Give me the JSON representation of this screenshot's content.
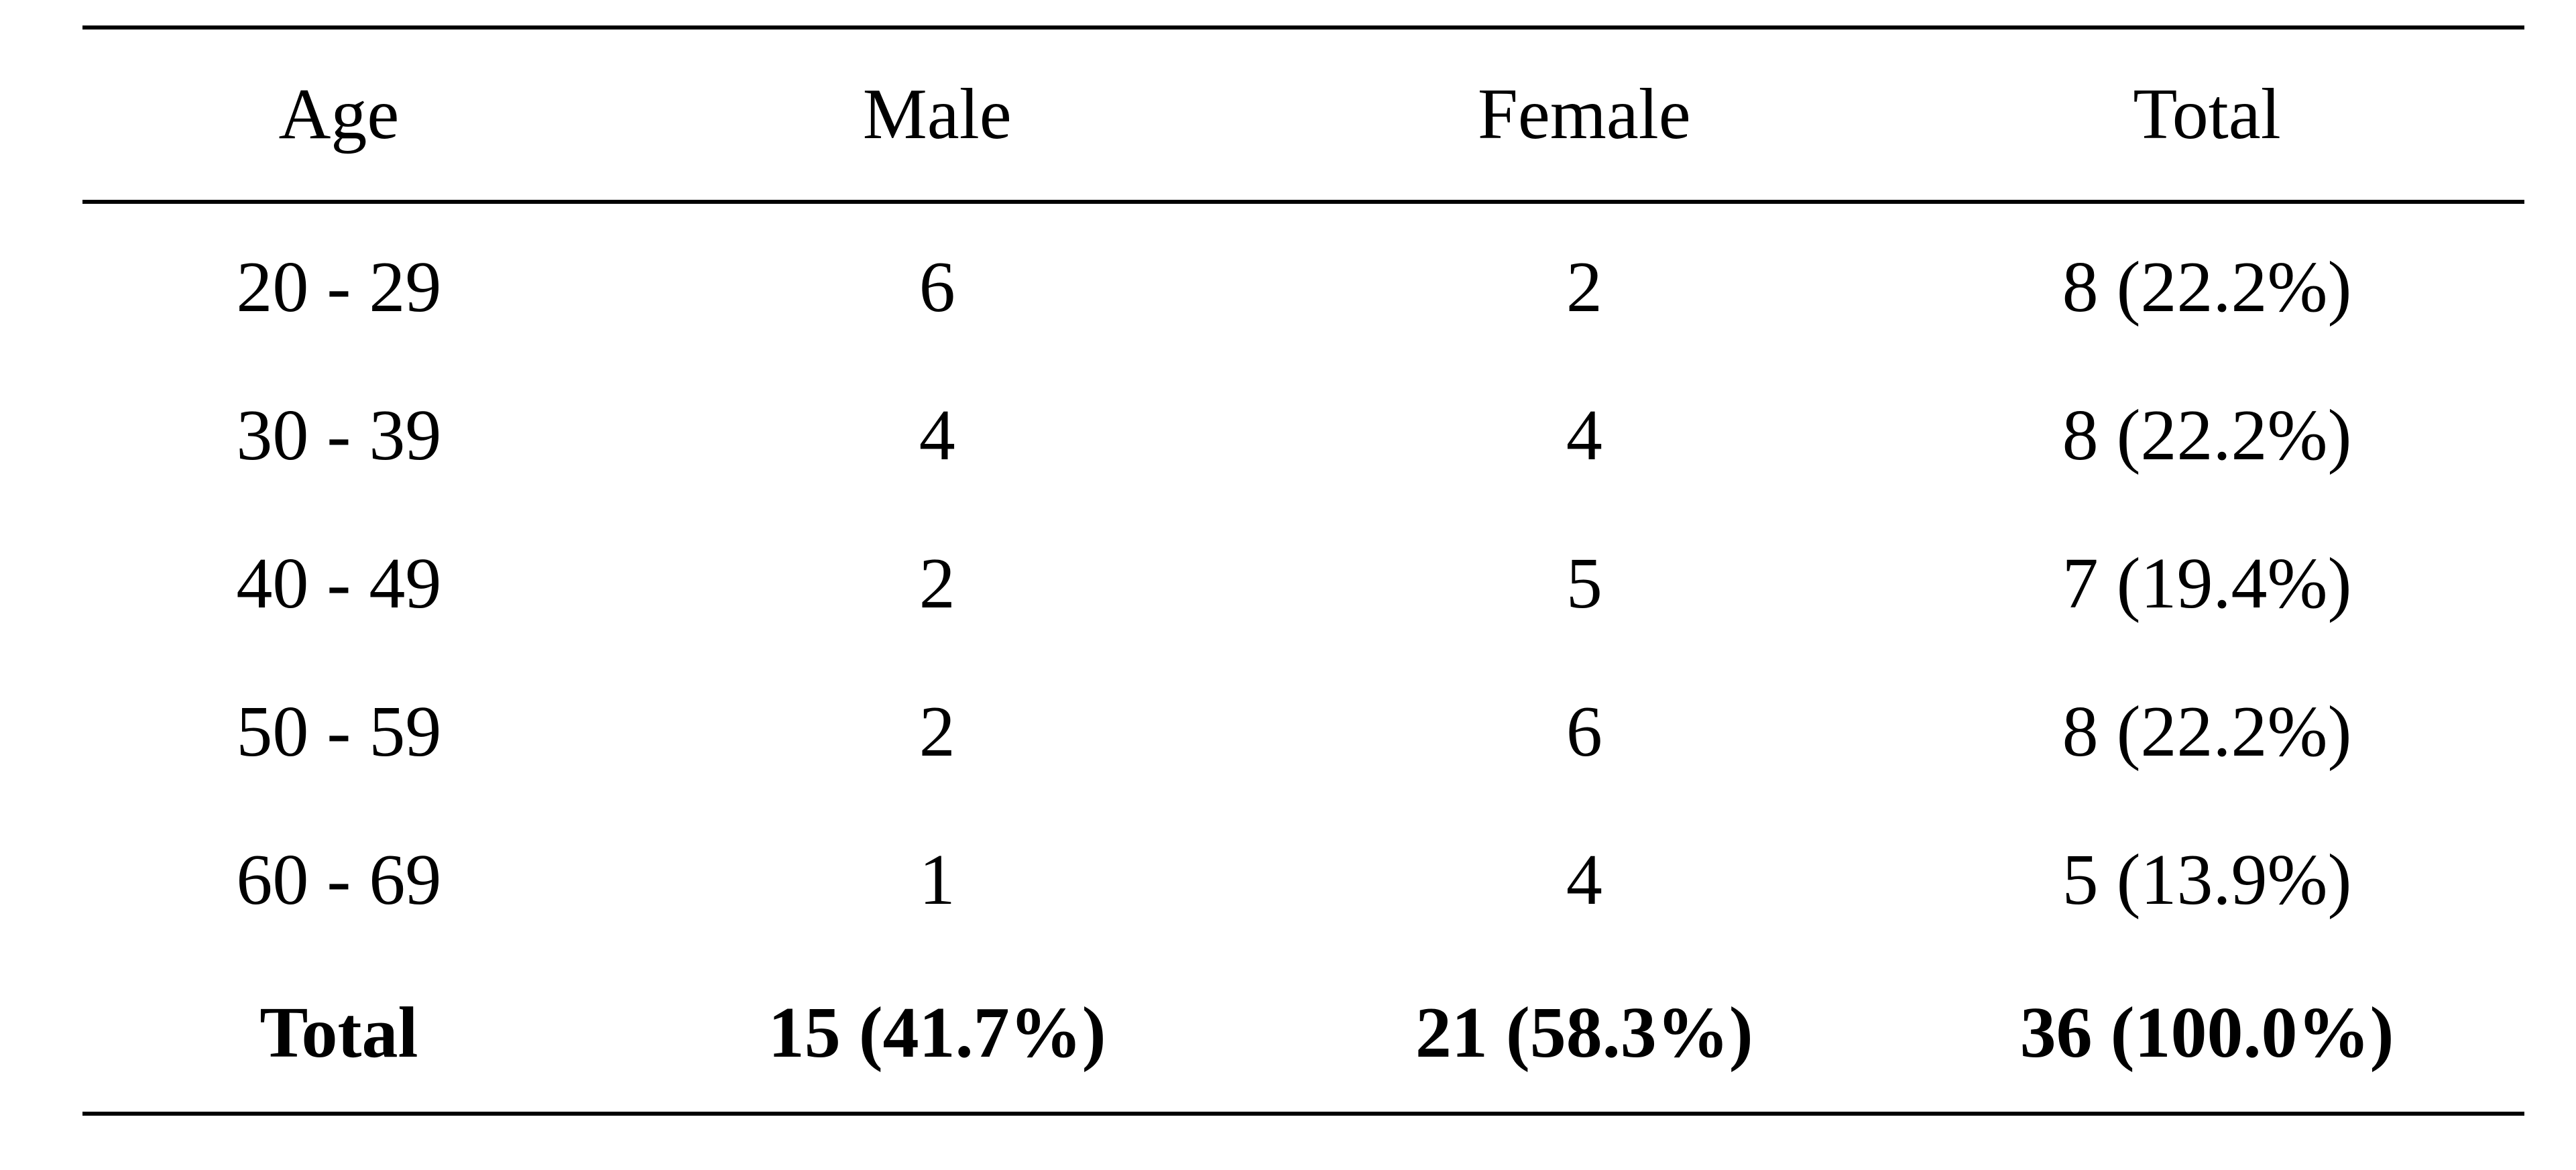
{
  "table": {
    "headers": [
      "Age",
      "Male",
      "Female",
      "Total"
    ],
    "rows": [
      [
        "20 - 29",
        "6",
        "2",
        "8 (22.2%)"
      ],
      [
        "30 - 39",
        "4",
        "4",
        "8 (22.2%)"
      ],
      [
        "40 - 49",
        "2",
        "5",
        "7 (19.4%)"
      ],
      [
        "50 - 59",
        "2",
        "6",
        "8 (22.2%)"
      ],
      [
        "60 - 69",
        "1",
        "4",
        "5 (13.9%)"
      ]
    ],
    "total_row": [
      "Total",
      "15 (41.7%)",
      "21 (58.3%)",
      "36 (100.0%)"
    ]
  }
}
